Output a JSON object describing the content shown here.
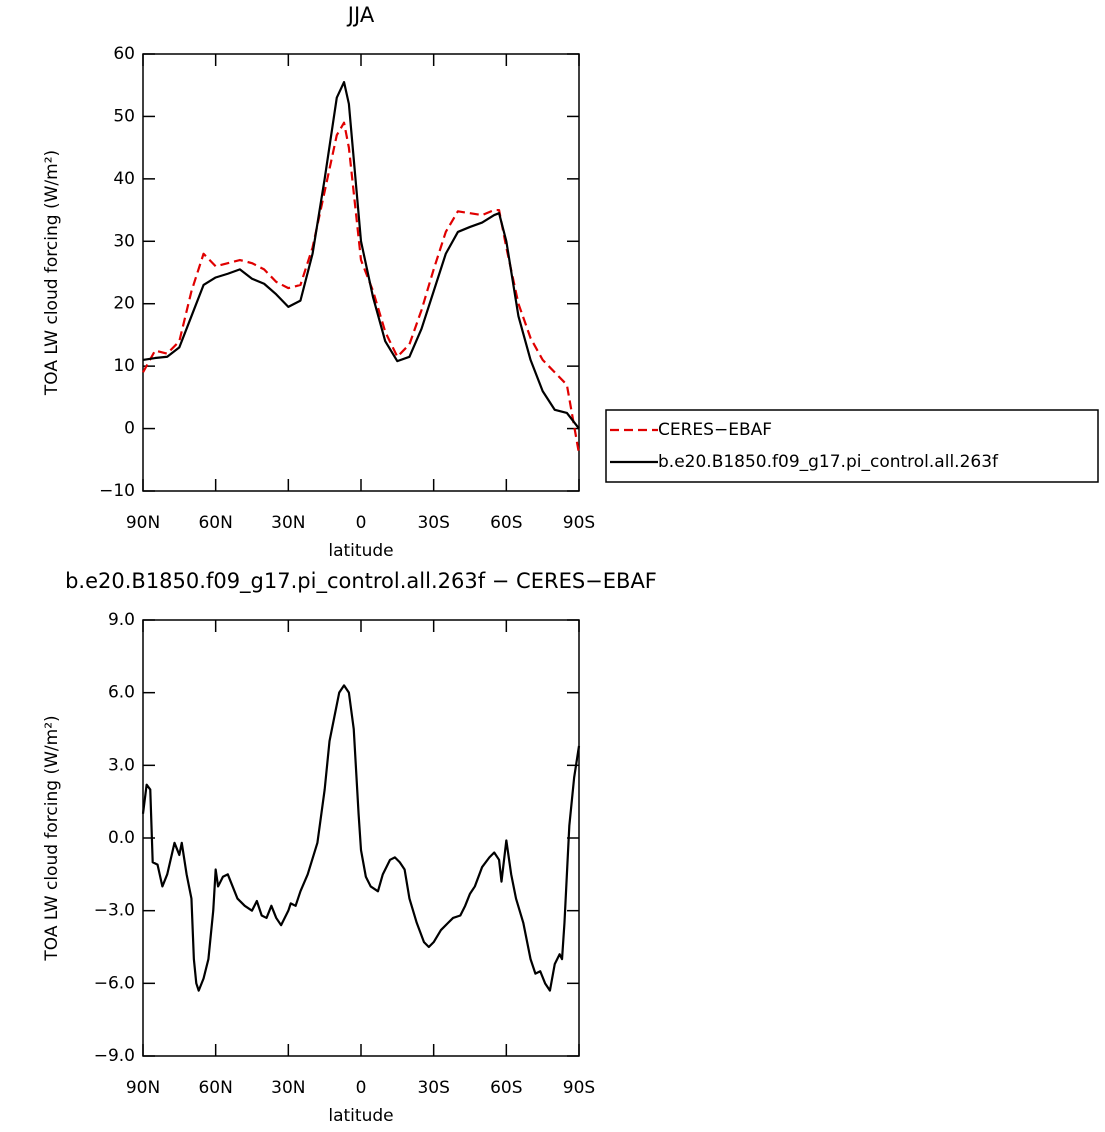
{
  "chart_data": [
    {
      "type": "line",
      "title": "JJA",
      "xlabel": "latitude",
      "ylabel": "TOA LW cloud forcing (W/m²)",
      "x": [
        90,
        85,
        80,
        75,
        70,
        65,
        60,
        55,
        50,
        45,
        40,
        35,
        30,
        25,
        20,
        15,
        10,
        7,
        5,
        0,
        -5,
        -10,
        -15,
        -20,
        -25,
        -30,
        -35,
        -40,
        -45,
        -50,
        -55,
        -57,
        -60,
        -65,
        -70,
        -75,
        -80,
        -85,
        -90
      ],
      "series": [
        {
          "name": "CERES−EBAF",
          "color": "#e00000",
          "dash": true,
          "values": [
            9,
            12.5,
            12,
            14,
            22,
            28,
            26,
            26.5,
            27,
            26.5,
            25.5,
            23.5,
            22.5,
            23,
            29,
            38,
            47,
            49,
            45,
            27,
            22,
            15.5,
            11.5,
            13.5,
            19,
            25.5,
            31.5,
            34.8,
            34.5,
            34.2,
            35,
            35,
            29,
            20,
            14.5,
            11,
            9,
            7,
            -4
          ]
        },
        {
          "name": "b.e20.B1850.f09_g17.pi_control.all.263f",
          "color": "#000000",
          "dash": false,
          "values": [
            11,
            11.3,
            11.5,
            13,
            18,
            23,
            24.2,
            24.8,
            25.5,
            24,
            23.2,
            21.5,
            19.5,
            20.5,
            28,
            40,
            53,
            55.5,
            52,
            30,
            21,
            14,
            10.8,
            11.5,
            16,
            22,
            28,
            31.5,
            32.3,
            33,
            34.2,
            34.5,
            30,
            18,
            11,
            6,
            3,
            2.5,
            0
          ]
        }
      ],
      "xlim": [
        90,
        -90
      ],
      "xticks": [
        {
          "value": 90,
          "label": "90N"
        },
        {
          "value": 60,
          "label": "60N"
        },
        {
          "value": 30,
          "label": "30N"
        },
        0,
        {
          "value": -30,
          "label": "30S"
        },
        {
          "value": -60,
          "label": "60S"
        },
        {
          "value": -90,
          "label": "90S"
        }
      ],
      "ylim": [
        -10,
        60
      ],
      "yticks": [
        {
          "value": -10,
          "label": "−10"
        },
        0,
        10,
        20,
        30,
        40,
        50,
        60
      ],
      "legend": "right"
    },
    {
      "type": "line",
      "title": "b.e20.B1850.f09_g17.pi_control.all.263f − CERES−EBAF",
      "xlabel": "latitude",
      "ylabel": "TOA LW cloud forcing (W/m²)",
      "x": [
        90,
        88.5,
        87,
        86,
        84,
        82,
        80,
        77,
        75,
        74,
        72,
        70,
        69,
        68,
        67,
        65,
        63,
        61,
        60,
        59,
        57,
        55,
        53,
        51,
        48,
        45,
        43,
        41,
        39,
        37,
        35,
        33,
        30,
        29,
        27,
        25,
        22,
        18,
        15,
        13,
        11,
        9,
        7,
        5,
        3,
        1,
        0,
        -2,
        -4,
        -7,
        -9,
        -12,
        -14,
        -16,
        -18,
        -20,
        -23,
        -26,
        -28,
        -30,
        -33,
        -36,
        -38,
        -41,
        -43,
        -45,
        -47,
        -50,
        -53,
        -55,
        -57,
        -58,
        -60,
        -62,
        -64,
        -67,
        -70,
        -72,
        -74,
        -76,
        -78,
        -80,
        -82,
        -83,
        -84,
        -86,
        -88,
        -90
      ],
      "series": [
        {
          "color": "#000000",
          "dash": false,
          "values": [
            1,
            2.2,
            2,
            -1,
            -1.1,
            -2,
            -1.5,
            -0.2,
            -0.7,
            -0.2,
            -1.5,
            -2.5,
            -5,
            -6,
            -6.3,
            -5.8,
            -5,
            -3,
            -1.3,
            -2,
            -1.6,
            -1.5,
            -2,
            -2.5,
            -2.8,
            -3,
            -2.6,
            -3.2,
            -3.3,
            -2.8,
            -3.3,
            -3.6,
            -3,
            -2.7,
            -2.8,
            -2.2,
            -1.5,
            -0.2,
            2,
            4,
            5,
            6,
            6.3,
            6,
            4.5,
            1,
            -0.5,
            -1.6,
            -2,
            -2.2,
            -1.5,
            -0.9,
            -0.8,
            -1,
            -1.3,
            -2.5,
            -3.5,
            -4.3,
            -4.5,
            -4.3,
            -3.8,
            -3.5,
            -3.3,
            -3.2,
            -2.8,
            -2.3,
            -2,
            -1.2,
            -0.8,
            -0.6,
            -0.9,
            -1.8,
            -0.1,
            -1.5,
            -2.5,
            -3.5,
            -5,
            -5.6,
            -5.5,
            -6,
            -6.3,
            -5.2,
            -4.8,
            -5,
            -3.5,
            0.5,
            2.5,
            3.8
          ]
        }
      ],
      "xlim": [
        90,
        -90
      ],
      "xticks": [
        {
          "value": 90,
          "label": "90N"
        },
        {
          "value": 60,
          "label": "60N"
        },
        {
          "value": 30,
          "label": "30N"
        },
        0,
        {
          "value": -30,
          "label": "30S"
        },
        {
          "value": -60,
          "label": "60S"
        },
        {
          "value": -90,
          "label": "90S"
        }
      ],
      "ylim": [
        -9,
        9
      ],
      "yticks": [
        {
          "value": -9,
          "label": "−9.0"
        },
        {
          "value": -6,
          "label": "−6.0"
        },
        {
          "value": -3,
          "label": "−3.0"
        },
        {
          "value": 0,
          "label": "0.0"
        },
        {
          "value": 3,
          "label": "3.0"
        },
        {
          "value": 6,
          "label": "6.0"
        },
        {
          "value": 9,
          "label": "9.0"
        }
      ]
    }
  ]
}
